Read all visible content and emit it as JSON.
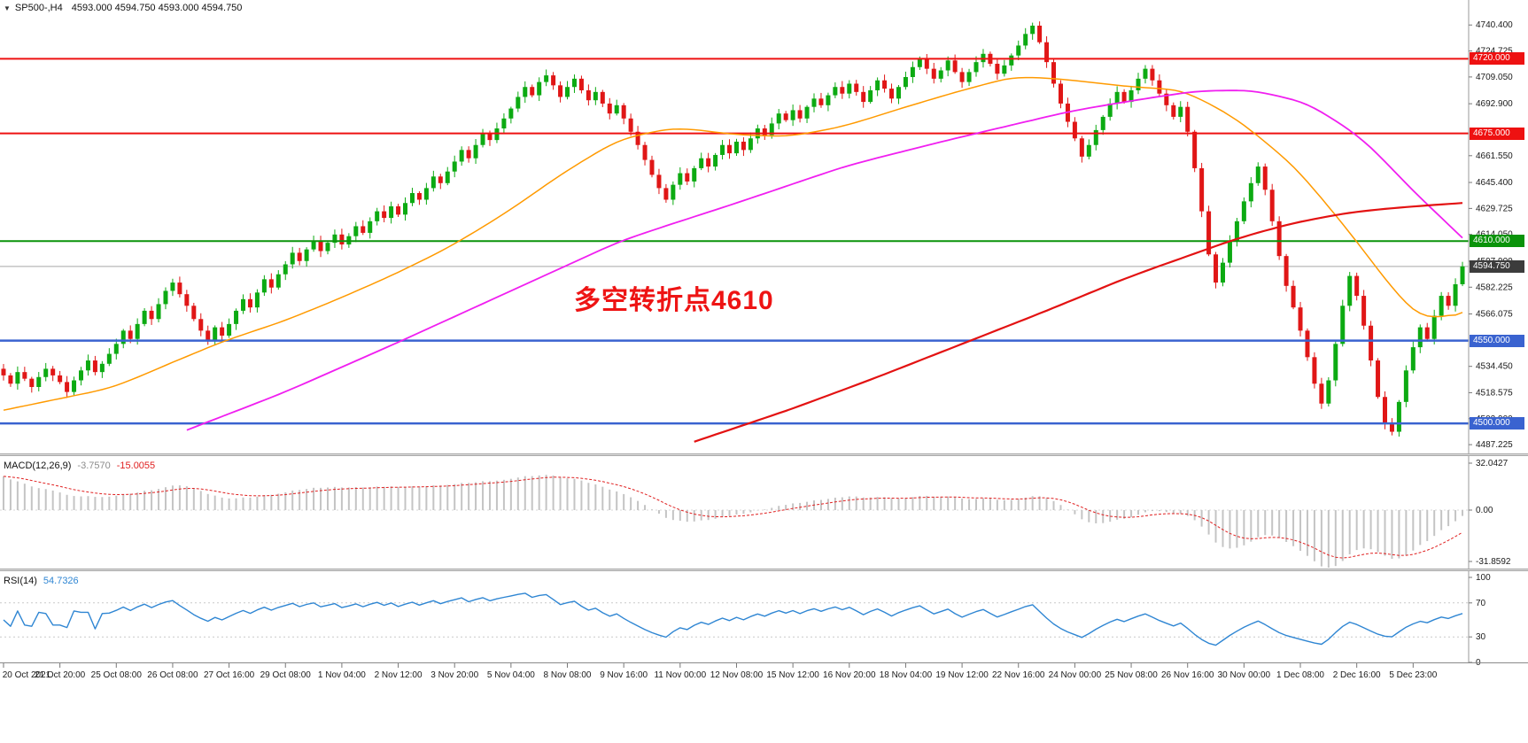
{
  "colors": {
    "bull": "#0caa12",
    "bear": "#e01616",
    "ma_fast": "#ff9a00",
    "ma_mid": "#f01ff0",
    "ma_slow": "#e31212",
    "hline_red": "#ee1111",
    "hline_green": "#0a930a",
    "hline_blue": "#3a63d0",
    "last_price_line": "#a8a8a8",
    "last_price_tag_bg": "#3c3c3c",
    "macd_hist": "#c4c4c4",
    "macd_signal": "#e02020",
    "rsi_line": "#2f86d3",
    "axis_text": "#1a1a1a",
    "annotation": "#ee1414"
  },
  "panels": {
    "main": {
      "collapse_icon": "▼",
      "symbol_label": "SP500-,H4",
      "ohlc_label": "4593.000 4594.750 4593.000 4594.750"
    },
    "macd": {
      "label": "MACD(12,26,9)",
      "value_main": "-3.7570",
      "value_signal": "-15.0055"
    },
    "rsi": {
      "label": "RSI(14)",
      "value": "54.7326"
    }
  },
  "annotation": {
    "text": "多空转折点4610"
  },
  "axes": {
    "price_tick_labels": [
      "4740.400",
      "4724.725",
      "4709.050",
      "4692.900",
      "4661.550",
      "4645.400",
      "4629.725",
      "4614.050",
      "4597.900",
      "4582.225",
      "4566.075",
      "4534.450",
      "4518.575",
      "4502.900",
      "4487.225"
    ],
    "macd_ticks": [
      "32.0427",
      "0.00",
      "-31.8592"
    ],
    "rsi_ticks": [
      "100",
      "70",
      "30",
      "0"
    ],
    "time_labels": [
      "20 Oct 2021",
      "21 Oct 20:00",
      "25 Oct 08:00",
      "26 Oct 08:00",
      "27 Oct 16:00",
      "29 Oct 08:00",
      "1 Nov 04:00",
      "2 Nov 12:00",
      "3 Nov 20:00",
      "5 Nov 04:00",
      "8 Nov 08:00",
      "9 Nov 16:00",
      "11 Nov 00:00",
      "12 Nov 08:00",
      "15 Nov 12:00",
      "16 Nov 20:00",
      "18 Nov 04:00",
      "19 Nov 12:00",
      "22 Nov 16:00",
      "24 Nov 00:00",
      "25 Nov 08:00",
      "26 Nov 16:00",
      "30 Nov 00:00",
      "1 Dec 08:00",
      "2 Dec 16:00",
      "5 Dec 23:00"
    ]
  },
  "chart_data": {
    "type": "candlestick",
    "symbol": "SP500-",
    "timeframe": "H4",
    "title": "SP500- H4 candlestick chart with MACD(12,26,9) and RSI(14)",
    "ohlc_current": {
      "open": "4593.000",
      "high": "4594.750",
      "low": "4593.000",
      "close": "4594.750"
    },
    "price_axis_range": [
      4483,
      4748
    ],
    "bars_per_time_label": 8,
    "closes": [
      4529,
      4524,
      4531,
      4527,
      4522,
      4528,
      4533,
      4529,
      4525,
      4519,
      4526,
      4532,
      4538,
      4531,
      4536,
      4542,
      4548,
      4556,
      4551,
      4560,
      4568,
      4563,
      4572,
      4580,
      4585,
      4578,
      4571,
      4563,
      4556,
      4550,
      4558,
      4553,
      4560,
      4568,
      4575,
      4570,
      4579,
      4587,
      4582,
      4590,
      4596,
      4603,
      4598,
      4605,
      4610,
      4604,
      4609,
      4614,
      4608,
      4613,
      4619,
      4615,
      4622,
      4628,
      4624,
      4631,
      4626,
      4633,
      4639,
      4635,
      4642,
      4649,
      4645,
      4652,
      4658,
      4665,
      4660,
      4668,
      4675,
      4671,
      4678,
      4684,
      4690,
      4697,
      4703,
      4698,
      4706,
      4710,
      4704,
      4697,
      4703,
      4708,
      4701,
      4695,
      4700,
      4693,
      4687,
      4692,
      4684,
      4676,
      4668,
      4659,
      4650,
      4642,
      4635,
      4644,
      4651,
      4646,
      4654,
      4660,
      4655,
      4662,
      4668,
      4663,
      4670,
      4665,
      4672,
      4678,
      4674,
      4681,
      4687,
      4683,
      4689,
      4684,
      4691,
      4696,
      4692,
      4698,
      4703,
      4699,
      4705,
      4700,
      4694,
      4701,
      4707,
      4702,
      4696,
      4703,
      4709,
      4715,
      4720,
      4714,
      4708,
      4713,
      4719,
      4712,
      4706,
      4712,
      4718,
      4723,
      4717,
      4711,
      4716,
      4722,
      4728,
      4735,
      4740,
      4730,
      4718,
      4705,
      4693,
      4682,
      4672,
      4661,
      4668,
      4677,
      4685,
      4693,
      4700,
      4694,
      4701,
      4708,
      4714,
      4707,
      4699,
      4692,
      4685,
      4691,
      4676,
      4654,
      4628,
      4602,
      4585,
      4597,
      4610,
      4622,
      4634,
      4645,
      4655,
      4641,
      4622,
      4601,
      4583,
      4570,
      4556,
      4540,
      4524,
      4512,
      4526,
      4548,
      4571,
      4589,
      4577,
      4559,
      4538,
      4516,
      4500,
      4495,
      4513,
      4532,
      4546,
      4558,
      4551,
      4565,
      4577,
      4571,
      4584,
      4594.75
    ],
    "horizontal_levels": [
      {
        "label": "4720.000",
        "color_key": "hline_red",
        "width": 2
      },
      {
        "label": "4675.000",
        "color_key": "hline_red",
        "width": 2
      },
      {
        "label": "4610.000",
        "color_key": "hline_green",
        "width": 2
      },
      {
        "label": "4550.000",
        "color_key": "hline_blue",
        "width": 2.5
      },
      {
        "label": "4500.000",
        "color_key": "hline_blue",
        "width": 2.5
      }
    ],
    "last_price": {
      "label": "4594.750"
    },
    "moving_averages": [
      {
        "name": "ma-fast-orange",
        "color_key": "ma_fast",
        "stroke": 1.5,
        "keypoints": [
          [
            0,
            4508
          ],
          [
            8,
            4515
          ],
          [
            16,
            4522
          ],
          [
            24,
            4537
          ],
          [
            32,
            4551
          ],
          [
            40,
            4562
          ],
          [
            48,
            4576
          ],
          [
            56,
            4591
          ],
          [
            64,
            4608
          ],
          [
            72,
            4629
          ],
          [
            80,
            4653
          ],
          [
            88,
            4673
          ],
          [
            96,
            4679
          ],
          [
            104,
            4674
          ],
          [
            112,
            4673
          ],
          [
            120,
            4680
          ],
          [
            128,
            4691
          ],
          [
            136,
            4701
          ],
          [
            144,
            4710
          ],
          [
            152,
            4707
          ],
          [
            160,
            4703
          ],
          [
            168,
            4701
          ],
          [
            176,
            4681
          ],
          [
            184,
            4652
          ],
          [
            192,
            4610
          ],
          [
            198,
            4576
          ],
          [
            202,
            4559
          ],
          [
            207,
            4567
          ]
        ]
      },
      {
        "name": "ma-mid-magenta",
        "color_key": "ma_mid",
        "stroke": 1.8,
        "keypoints": [
          [
            26,
            4496
          ],
          [
            40,
            4519
          ],
          [
            56,
            4549
          ],
          [
            72,
            4580
          ],
          [
            88,
            4611
          ],
          [
            104,
            4633
          ],
          [
            120,
            4656
          ],
          [
            136,
            4673
          ],
          [
            152,
            4689
          ],
          [
            162,
            4696
          ],
          [
            170,
            4701
          ],
          [
            178,
            4701
          ],
          [
            186,
            4692
          ],
          [
            194,
            4668
          ],
          [
            200,
            4640
          ],
          [
            207,
            4612
          ]
        ]
      },
      {
        "name": "ma-slow-red",
        "color_key": "ma_slow",
        "stroke": 2.2,
        "keypoints": [
          [
            98,
            4489
          ],
          [
            112,
            4509
          ],
          [
            124,
            4528
          ],
          [
            136,
            4548
          ],
          [
            148,
            4568
          ],
          [
            160,
            4589
          ],
          [
            168,
            4601
          ],
          [
            176,
            4613
          ],
          [
            184,
            4622
          ],
          [
            192,
            4628
          ],
          [
            200,
            4631
          ],
          [
            207,
            4633
          ]
        ]
      }
    ],
    "indicators": [
      {
        "name": "MACD",
        "params": "12,26,9",
        "shown_values": [
          "-3.7570",
          "-15.0055"
        ],
        "axis_ticks": [
          "32.0427",
          "0.00",
          "-31.8592"
        ]
      },
      {
        "name": "RSI",
        "params": "14",
        "shown_value": "54.7326",
        "axis_ticks": [
          "100",
          "70",
          "30",
          "0"
        ],
        "levels": [
          70,
          30
        ]
      }
    ],
    "annotation": {
      "text": "多空转折点4610"
    }
  }
}
